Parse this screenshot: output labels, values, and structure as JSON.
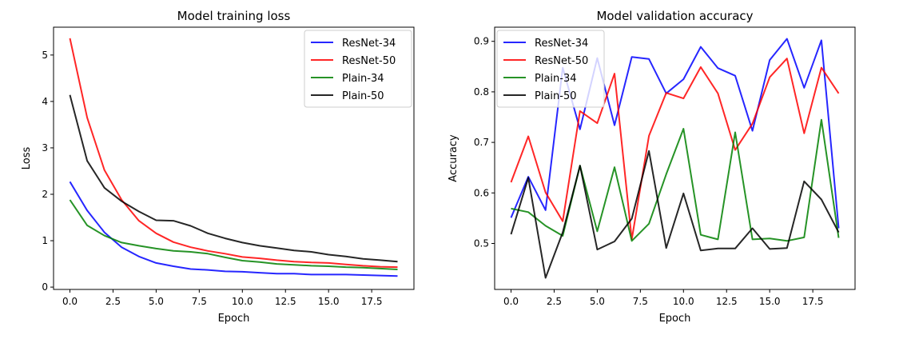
{
  "chart_data": [
    {
      "type": "line",
      "title": "Model training loss",
      "xlabel": "Epoch",
      "ylabel": "Loss",
      "xlim": [
        -0.95,
        19.95
      ],
      "ylim": [
        -0.05,
        5.6
      ],
      "xticks": [
        "0.0",
        "2.5",
        "5.0",
        "7.5",
        "10.0",
        "12.5",
        "15.0",
        "17.5"
      ],
      "xtick_values": [
        0,
        2.5,
        5,
        7.5,
        10,
        12.5,
        15,
        17.5
      ],
      "yticks": [
        "0",
        "1",
        "2",
        "3",
        "4",
        "5"
      ],
      "ytick_values": [
        0,
        1,
        2,
        3,
        4,
        5
      ],
      "grid": false,
      "legend_position": "top-right",
      "x": [
        0,
        1,
        2,
        3,
        4,
        5,
        6,
        7,
        8,
        9,
        10,
        11,
        12,
        13,
        14,
        15,
        16,
        17,
        18,
        19
      ],
      "series": [
        {
          "name": "ResNet-34",
          "color": "#0000ff",
          "values": [
            2.27,
            1.65,
            1.18,
            0.86,
            0.66,
            0.52,
            0.45,
            0.39,
            0.37,
            0.34,
            0.33,
            0.31,
            0.29,
            0.29,
            0.27,
            0.27,
            0.27,
            0.26,
            0.25,
            0.24
          ]
        },
        {
          "name": "ResNet-50",
          "color": "#ff0000",
          "values": [
            5.36,
            3.65,
            2.52,
            1.88,
            1.43,
            1.16,
            0.97,
            0.86,
            0.78,
            0.72,
            0.65,
            0.62,
            0.58,
            0.55,
            0.53,
            0.52,
            0.49,
            0.46,
            0.44,
            0.43
          ]
        },
        {
          "name": "Plain-34",
          "color": "#008000",
          "values": [
            1.88,
            1.33,
            1.11,
            0.96,
            0.89,
            0.83,
            0.78,
            0.76,
            0.72,
            0.64,
            0.57,
            0.54,
            0.5,
            0.48,
            0.46,
            0.45,
            0.43,
            0.42,
            0.4,
            0.38
          ]
        },
        {
          "name": "Plain-50",
          "color": "#000000",
          "values": [
            4.14,
            2.72,
            2.14,
            1.85,
            1.63,
            1.44,
            1.43,
            1.32,
            1.16,
            1.05,
            0.96,
            0.89,
            0.84,
            0.79,
            0.76,
            0.7,
            0.66,
            0.61,
            0.58,
            0.55
          ]
        }
      ]
    },
    {
      "type": "line",
      "title": "Model validation accuracy",
      "xlabel": "Epoch",
      "ylabel": "Accuracy",
      "xlim": [
        -0.95,
        19.95
      ],
      "ylim": [
        0.409,
        0.928
      ],
      "xticks": [
        "0.0",
        "2.5",
        "5.0",
        "7.5",
        "10.0",
        "12.5",
        "15.0",
        "17.5"
      ],
      "xtick_values": [
        0,
        2.5,
        5,
        7.5,
        10,
        12.5,
        15,
        17.5
      ],
      "yticks": [
        "0.5",
        "0.6",
        "0.7",
        "0.8",
        "0.9"
      ],
      "ytick_values": [
        0.5,
        0.6,
        0.7,
        0.8,
        0.9
      ],
      "grid": false,
      "legend_position": "top-left",
      "x": [
        0,
        1,
        2,
        3,
        4,
        5,
        6,
        7,
        8,
        9,
        10,
        11,
        12,
        13,
        14,
        15,
        16,
        17,
        18,
        19
      ],
      "series": [
        {
          "name": "ResNet-34",
          "color": "#0000ff",
          "values": [
            0.551,
            0.632,
            0.566,
            0.848,
            0.726,
            0.867,
            0.734,
            0.869,
            0.865,
            0.797,
            0.825,
            0.889,
            0.847,
            0.832,
            0.723,
            0.863,
            0.905,
            0.808,
            0.902,
            0.53
          ]
        },
        {
          "name": "ResNet-50",
          "color": "#ff0000",
          "values": [
            0.621,
            0.712,
            0.601,
            0.544,
            0.762,
            0.738,
            0.836,
            0.508,
            0.713,
            0.798,
            0.787,
            0.849,
            0.797,
            0.685,
            0.737,
            0.829,
            0.866,
            0.718,
            0.848,
            0.797
          ]
        },
        {
          "name": "Plain-34",
          "color": "#008000",
          "values": [
            0.569,
            0.562,
            0.535,
            0.515,
            0.654,
            0.524,
            0.651,
            0.505,
            0.539,
            0.637,
            0.727,
            0.517,
            0.508,
            0.72,
            0.508,
            0.51,
            0.505,
            0.512,
            0.745,
            0.511
          ]
        },
        {
          "name": "Plain-50",
          "color": "#000000",
          "values": [
            0.518,
            0.63,
            0.432,
            0.522,
            0.654,
            0.488,
            0.504,
            0.549,
            0.683,
            0.491,
            0.599,
            0.486,
            0.49,
            0.49,
            0.53,
            0.489,
            0.491,
            0.623,
            0.587,
            0.522
          ]
        }
      ]
    }
  ]
}
